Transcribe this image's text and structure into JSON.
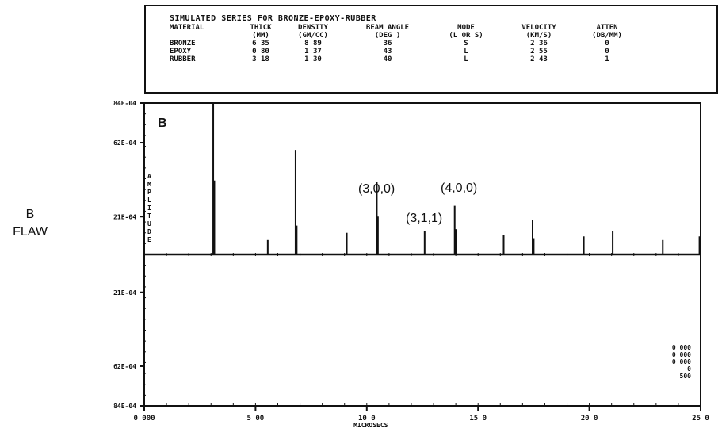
{
  "header": {
    "title": "SIMULATED SERIES FOR BRONZE-EPOXY-RUBBER",
    "columns": [
      "MATERIAL",
      "THICK",
      "DENSITY",
      "BEAM ANGLE",
      "MODE",
      "VELOCITY",
      "ATTEN"
    ],
    "units": [
      "",
      "(MM)",
      "(GM/CC)",
      "(DEG )",
      "(L OR S)",
      "(KM/S)",
      "(DB/MM)"
    ],
    "rows": [
      [
        "BRONZE",
        "6 35",
        "8 89",
        "36",
        "S",
        "2 36",
        "0"
      ],
      [
        "EPOXY",
        "0 80",
        "1 37",
        "43",
        "L",
        "2 55",
        "0"
      ],
      [
        "RUBBER",
        "3 18",
        "1 30",
        "40",
        "L",
        "2 43",
        "1"
      ]
    ]
  },
  "side_label": {
    "line1": "B",
    "line2": "FLAW"
  },
  "corner_values": [
    "0 000",
    "0 000",
    "0 000",
    "0",
    "500"
  ],
  "chart_data": {
    "type": "line",
    "panel_label": "B",
    "xlabel": "MICROSECS",
    "ylabel": "AMPLITUDE",
    "xlim": [
      0,
      25
    ],
    "ylim": [
      -0.0084,
      0.0084
    ],
    "x_tick_labels": [
      {
        "x": 0,
        "label": "0 000"
      },
      {
        "x": 5,
        "label": "5 00"
      },
      {
        "x": 10,
        "label": "10 0"
      },
      {
        "x": 15,
        "label": "15 0"
      },
      {
        "x": 20,
        "label": "20 0"
      },
      {
        "x": 25,
        "label": "25 0"
      }
    ],
    "y_tick_labels": [
      {
        "y": 0.0084,
        "label": "84E-04"
      },
      {
        "y": 0.0062,
        "label": "62E-04"
      },
      {
        "y": 0.0021,
        "label": "21E-04"
      },
      {
        "y": -0.0021,
        "label": "21E-04"
      },
      {
        "y": -0.0062,
        "label": "62E-04"
      },
      {
        "y": -0.0084,
        "label": "84E-04"
      }
    ],
    "annotations": [
      {
        "label": "(3,0,0)",
        "x": 10.4
      },
      {
        "label": "(4,0,0)",
        "x": 14.0
      },
      {
        "label": "(3,1,1)",
        "x": 12.5
      }
    ],
    "peaks": [
      {
        "x": 3.1,
        "y": 0.0084
      },
      {
        "x": 3.15,
        "y": 0.0041
      },
      {
        "x": 5.55,
        "y": 0.0008
      },
      {
        "x": 6.8,
        "y": 0.0058
      },
      {
        "x": 6.85,
        "y": 0.0016
      },
      {
        "x": 9.1,
        "y": 0.0012
      },
      {
        "x": 10.45,
        "y": 0.004
      },
      {
        "x": 10.5,
        "y": 0.0021
      },
      {
        "x": 12.6,
        "y": 0.0013
      },
      {
        "x": 13.95,
        "y": 0.0027
      },
      {
        "x": 14.0,
        "y": 0.0014
      },
      {
        "x": 16.15,
        "y": 0.0011
      },
      {
        "x": 17.45,
        "y": 0.0019
      },
      {
        "x": 17.5,
        "y": 0.0009
      },
      {
        "x": 19.75,
        "y": 0.001
      },
      {
        "x": 21.05,
        "y": 0.0013
      },
      {
        "x": 23.3,
        "y": 0.0008
      },
      {
        "x": 24.95,
        "y": 0.001
      }
    ]
  }
}
